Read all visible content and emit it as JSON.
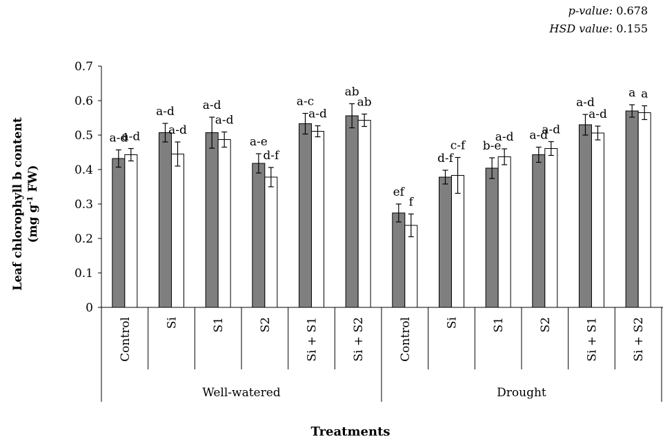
{
  "stats": {
    "pvalue_label": "p-value:",
    "pvalue": "0.678",
    "hsd_label": "HSD value",
    "hsd": ": 0.155"
  },
  "chart_data": {
    "type": "bar",
    "title": "",
    "ylabel_line1": "Leaf chlorophyll b content",
    "ylabel_line2_prefix": "(mg g",
    "ylabel_line2_sup": "-1",
    "ylabel_line2_suffix": " FW)",
    "xlabel": "Treatments",
    "ylim": [
      0,
      0.7
    ],
    "yticks": [
      "0",
      "0.1",
      "0.2",
      "0.3",
      "0.4",
      "0.5",
      "0.6",
      "0.7"
    ],
    "grid": false,
    "groups": [
      {
        "name": "Well-watered",
        "categories": [
          "Control",
          "Si",
          "S1",
          "S2",
          "Si + S1",
          "Si + S2"
        ]
      },
      {
        "name": "Drought",
        "categories": [
          "Control",
          "Si",
          "S1",
          "S2",
          "Si + S1",
          "Si + S2"
        ]
      }
    ],
    "series": [
      {
        "color": "#7f7f7f",
        "values": [
          0.432,
          0.507,
          0.507,
          0.418,
          0.533,
          0.556,
          0.274,
          0.378,
          0.404,
          0.443,
          0.53,
          0.57
        ],
        "errors": [
          0.025,
          0.027,
          0.045,
          0.028,
          0.03,
          0.035,
          0.026,
          0.02,
          0.03,
          0.022,
          0.03,
          0.018
        ],
        "labels": [
          "a-d",
          "a-d",
          "a-d",
          "a-e",
          "a-c",
          "ab",
          "ef",
          "d-f",
          "b-e",
          "a-d",
          "a-d",
          "a"
        ]
      },
      {
        "color": "#ffffff",
        "values": [
          0.443,
          0.445,
          0.487,
          0.378,
          0.511,
          0.543,
          0.238,
          0.383,
          0.437,
          0.461,
          0.506,
          0.565
        ],
        "errors": [
          0.018,
          0.035,
          0.022,
          0.028,
          0.016,
          0.018,
          0.033,
          0.052,
          0.023,
          0.02,
          0.02,
          0.02
        ],
        "labels": [
          "a-d",
          "a-d",
          "a-d",
          "d-f",
          "a-d",
          "ab",
          "f",
          "c-f",
          "a-d",
          "a-d",
          "a-d",
          "a"
        ]
      }
    ]
  }
}
